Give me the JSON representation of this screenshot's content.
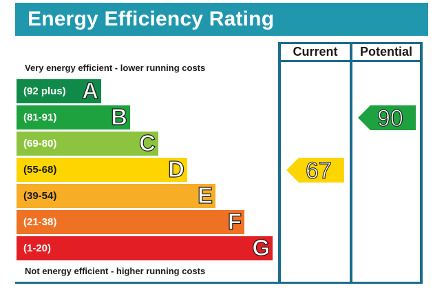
{
  "header": {
    "title": "Energy Efficiency Rating"
  },
  "columns": {
    "current": "Current",
    "potential": "Potential"
  },
  "captions": {
    "top": "Very energy efficient - lower running costs",
    "bottom": "Not energy efficient - higher running costs"
  },
  "colors": {
    "header_bg": "#2197ad",
    "frame": "#1c6c8c"
  },
  "chart_data": {
    "type": "bar",
    "categories": [
      "A",
      "B",
      "C",
      "D",
      "E",
      "F",
      "G"
    ],
    "bands": [
      {
        "letter": "A",
        "range": "(92 plus)",
        "color": "#108a48"
      },
      {
        "letter": "B",
        "range": "(81-91)",
        "color": "#1ea13f"
      },
      {
        "letter": "C",
        "range": "(69-80)",
        "color": "#8dc43f"
      },
      {
        "letter": "D",
        "range": "(55-68)",
        "color": "#ffd500"
      },
      {
        "letter": "E",
        "range": "(39-54)",
        "color": "#f7ad26"
      },
      {
        "letter": "F",
        "range": "(21-38)",
        "color": "#ef7224"
      },
      {
        "letter": "G",
        "range": "(1-20)",
        "color": "#e31e25"
      }
    ],
    "current": {
      "value": "67",
      "band": "D",
      "color": "#ffd500"
    },
    "potential": {
      "value": "90",
      "band": "B",
      "color": "#1ea13f"
    }
  }
}
